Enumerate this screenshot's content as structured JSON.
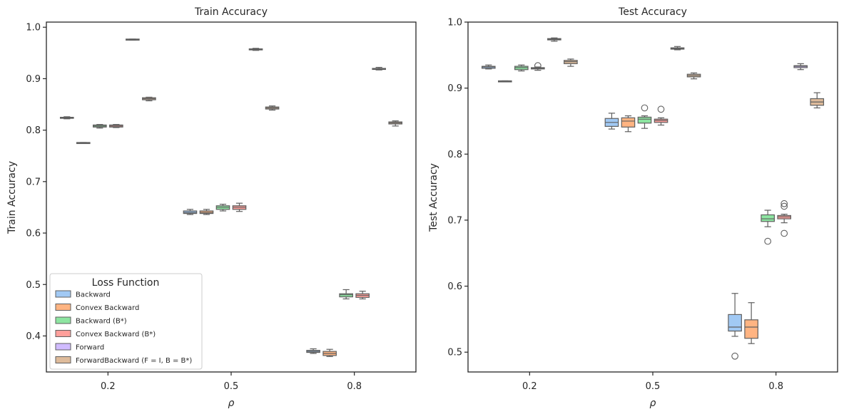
{
  "chart_data": [
    {
      "type": "box",
      "title": "Train Accuracy",
      "xlabel": "ρ",
      "ylabel": "Train Accuracy",
      "categories": [
        "0.2",
        "0.5",
        "0.8"
      ],
      "ylim": [
        0.33,
        1.01
      ],
      "yticks": [
        0.4,
        0.5,
        0.6,
        0.7,
        0.8,
        0.9,
        "1.0"
      ],
      "grid": false,
      "legend_position": "lower-left",
      "legend_title": "Loss Function",
      "series": [
        {
          "name": "Backward",
          "color": "#a1c9f4",
          "boxes": [
            {
              "category": "0.2",
              "min": 0.822,
              "q1": 0.823,
              "median": 0.824,
              "q3": 0.825,
              "max": 0.826
            },
            {
              "category": "0.5",
              "min": 0.636,
              "q1": 0.638,
              "median": 0.64,
              "q3": 0.643,
              "max": 0.646
            },
            {
              "category": "0.8",
              "min": 0.366,
              "q1": 0.368,
              "median": 0.37,
              "q3": 0.372,
              "max": 0.375
            }
          ]
        },
        {
          "name": "Convex Backward",
          "color": "#ffb482",
          "boxes": [
            {
              "category": "0.2",
              "min": 0.774,
              "q1": 0.775,
              "median": 0.775,
              "q3": 0.776,
              "max": 0.776
            },
            {
              "category": "0.5",
              "min": 0.636,
              "q1": 0.638,
              "median": 0.64,
              "q3": 0.643,
              "max": 0.646
            },
            {
              "category": "0.8",
              "min": 0.36,
              "q1": 0.362,
              "median": 0.366,
              "q3": 0.37,
              "max": 0.374
            }
          ]
        },
        {
          "name": "Backward (B*)",
          "color": "#8de5a1",
          "boxes": [
            {
              "category": "0.2",
              "min": 0.804,
              "q1": 0.806,
              "median": 0.808,
              "q3": 0.81,
              "max": 0.811
            },
            {
              "category": "0.5",
              "min": 0.643,
              "q1": 0.646,
              "median": 0.65,
              "q3": 0.653,
              "max": 0.656
            },
            {
              "category": "0.8",
              "min": 0.472,
              "q1": 0.476,
              "median": 0.48,
              "q3": 0.482,
              "max": 0.49
            }
          ]
        },
        {
          "name": "Convex Backward (B*)",
          "color": "#ff9f9b",
          "boxes": [
            {
              "category": "0.2",
              "min": 0.805,
              "q1": 0.806,
              "median": 0.808,
              "q3": 0.81,
              "max": 0.811
            },
            {
              "category": "0.5",
              "min": 0.642,
              "q1": 0.646,
              "median": 0.65,
              "q3": 0.653,
              "max": 0.658
            },
            {
              "category": "0.8",
              "min": 0.472,
              "q1": 0.475,
              "median": 0.479,
              "q3": 0.482,
              "max": 0.487
            }
          ]
        },
        {
          "name": "Forward",
          "color": "#d0bbff",
          "boxes": [
            {
              "category": "0.2",
              "min": 0.975,
              "q1": 0.976,
              "median": 0.976,
              "q3": 0.977,
              "max": 0.977
            },
            {
              "category": "0.5",
              "min": 0.955,
              "q1": 0.956,
              "median": 0.957,
              "q3": 0.958,
              "max": 0.959
            },
            {
              "category": "0.8",
              "min": 0.917,
              "q1": 0.918,
              "median": 0.919,
              "q3": 0.92,
              "max": 0.922
            }
          ]
        },
        {
          "name": "ForwardBackward (F = I, B = B*)",
          "color": "#debb9b",
          "boxes": [
            {
              "category": "0.2",
              "min": 0.857,
              "q1": 0.859,
              "median": 0.861,
              "q3": 0.863,
              "max": 0.864
            },
            {
              "category": "0.5",
              "min": 0.839,
              "q1": 0.841,
              "median": 0.843,
              "q3": 0.845,
              "max": 0.847
            },
            {
              "category": "0.8",
              "min": 0.808,
              "q1": 0.812,
              "median": 0.814,
              "q3": 0.816,
              "max": 0.818
            }
          ]
        }
      ]
    },
    {
      "type": "box",
      "title": "Test Accuracy",
      "xlabel": "ρ",
      "ylabel": "Test Accuracy",
      "categories": [
        "0.2",
        "0.5",
        "0.8"
      ],
      "ylim": [
        0.47,
        1.0
      ],
      "yticks": [
        0.5,
        0.6,
        0.7,
        0.8,
        0.9,
        "1.0"
      ],
      "grid": false,
      "series": [
        {
          "name": "Backward",
          "color": "#a1c9f4",
          "boxes": [
            {
              "category": "0.2",
              "min": 0.929,
              "q1": 0.93,
              "median": 0.932,
              "q3": 0.933,
              "max": 0.935,
              "outliers": []
            },
            {
              "category": "0.5",
              "min": 0.838,
              "q1": 0.842,
              "median": 0.848,
              "q3": 0.854,
              "max": 0.862,
              "outliers": []
            },
            {
              "category": "0.8",
              "min": 0.524,
              "q1": 0.532,
              "median": 0.538,
              "q3": 0.557,
              "max": 0.589,
              "outliers": [
                0.494
              ]
            }
          ]
        },
        {
          "name": "Convex Backward",
          "color": "#ffb482",
          "boxes": [
            {
              "category": "0.2",
              "min": 0.91,
              "q1": 0.91,
              "median": 0.91,
              "q3": 0.911,
              "max": 0.911,
              "outliers": []
            },
            {
              "category": "0.5",
              "min": 0.834,
              "q1": 0.841,
              "median": 0.85,
              "q3": 0.855,
              "max": 0.858,
              "outliers": []
            },
            {
              "category": "0.8",
              "min": 0.513,
              "q1": 0.521,
              "median": 0.538,
              "q3": 0.549,
              "max": 0.575,
              "outliers": []
            }
          ]
        },
        {
          "name": "Backward (B*)",
          "color": "#8de5a1",
          "boxes": [
            {
              "category": "0.2",
              "min": 0.926,
              "q1": 0.928,
              "median": 0.931,
              "q3": 0.933,
              "max": 0.935,
              "outliers": []
            },
            {
              "category": "0.5",
              "min": 0.839,
              "q1": 0.847,
              "median": 0.853,
              "q3": 0.856,
              "max": 0.858,
              "outliers": [
                0.87
              ]
            },
            {
              "category": "0.8",
              "min": 0.69,
              "q1": 0.698,
              "median": 0.702,
              "q3": 0.708,
              "max": 0.715,
              "outliers": [
                0.668
              ]
            }
          ]
        },
        {
          "name": "Convex Backward (B*)",
          "color": "#ff9f9b",
          "boxes": [
            {
              "category": "0.2",
              "min": 0.927,
              "q1": 0.929,
              "median": 0.93,
              "q3": 0.931,
              "max": 0.932,
              "outliers": [
                0.934
              ]
            },
            {
              "category": "0.5",
              "min": 0.844,
              "q1": 0.848,
              "median": 0.851,
              "q3": 0.853,
              "max": 0.855,
              "outliers": [
                0.868
              ]
            },
            {
              "category": "0.8",
              "min": 0.696,
              "q1": 0.702,
              "median": 0.705,
              "q3": 0.707,
              "max": 0.709,
              "outliers": [
                0.68,
                0.721,
                0.725
              ]
            }
          ]
        },
        {
          "name": "Forward",
          "color": "#d0bbff",
          "boxes": [
            {
              "category": "0.2",
              "min": 0.971,
              "q1": 0.973,
              "median": 0.974,
              "q3": 0.975,
              "max": 0.976,
              "outliers": []
            },
            {
              "category": "0.5",
              "min": 0.958,
              "q1": 0.959,
              "median": 0.96,
              "q3": 0.961,
              "max": 0.963,
              "outliers": []
            },
            {
              "category": "0.8",
              "min": 0.928,
              "q1": 0.931,
              "median": 0.933,
              "q3": 0.934,
              "max": 0.937,
              "outliers": []
            }
          ]
        },
        {
          "name": "ForwardBackward (F = I, B = B*)",
          "color": "#debb9b",
          "boxes": [
            {
              "category": "0.2",
              "min": 0.933,
              "q1": 0.937,
              "median": 0.94,
              "q3": 0.942,
              "max": 0.944,
              "outliers": []
            },
            {
              "category": "0.5",
              "min": 0.914,
              "q1": 0.917,
              "median": 0.919,
              "q3": 0.921,
              "max": 0.923,
              "outliers": []
            },
            {
              "category": "0.8",
              "min": 0.87,
              "q1": 0.874,
              "median": 0.879,
              "q3": 0.884,
              "max": 0.893,
              "outliers": []
            }
          ]
        }
      ]
    }
  ]
}
